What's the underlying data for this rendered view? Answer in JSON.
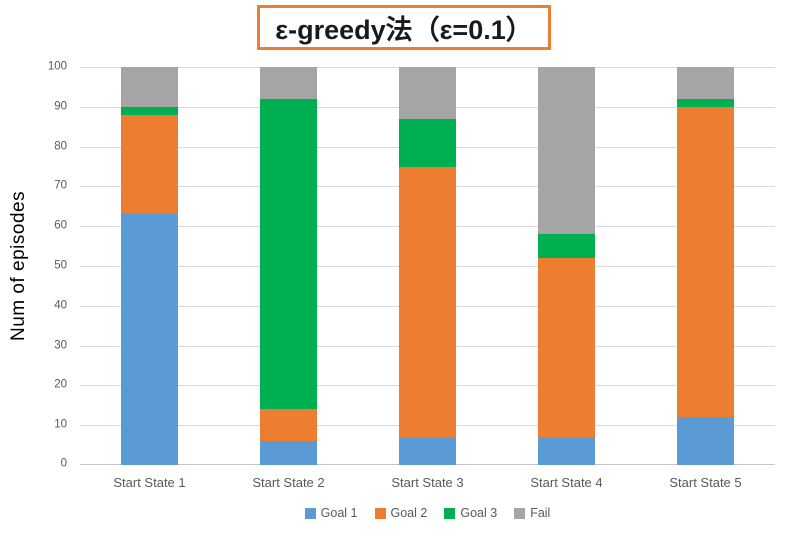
{
  "title": {
    "text": "ε-greedy法（ε=0.1）"
  },
  "chart_data": {
    "type": "bar",
    "stacked": true,
    "title": "ε-greedy法（ε=0.1）",
    "categories": [
      "Start State 1",
      "Start State 2",
      "Start State 3",
      "Start State 4",
      "Start State 5"
    ],
    "series": [
      {
        "name": "Goal 1",
        "color": "#5B9BD5",
        "values": [
          63,
          6,
          7,
          7,
          12
        ]
      },
      {
        "name": "Goal 2",
        "color": "#ED7D31",
        "values": [
          25,
          8,
          68,
          45,
          78
        ]
      },
      {
        "name": "Goal 3",
        "color": "#00B050",
        "values": [
          2,
          78,
          12,
          6,
          2
        ]
      },
      {
        "name": "Fail",
        "color": "#A5A5A5",
        "values": [
          10,
          8,
          13,
          42,
          8
        ]
      }
    ],
    "xlabel": "",
    "ylabel": "Num of episodes",
    "ylim": [
      0,
      100
    ],
    "yticks": [
      0,
      10,
      20,
      30,
      40,
      50,
      60,
      70,
      80,
      90,
      100
    ],
    "grid": true,
    "legend_position": "bottom",
    "legend_labels": [
      "Goal 1",
      "Goal 2",
      "Goal 3",
      "Fail"
    ]
  },
  "styles": {
    "background": "#FFFFFF",
    "grid_color": "#D9D9D9",
    "axis_line_color": "#C6C6C6",
    "tick_text_color": "#595959",
    "legend_text_color": "#595959",
    "title_text_color": "#1A1A1A",
    "title_border_color": "#ED7D31",
    "ylabel_color": "#000000"
  }
}
